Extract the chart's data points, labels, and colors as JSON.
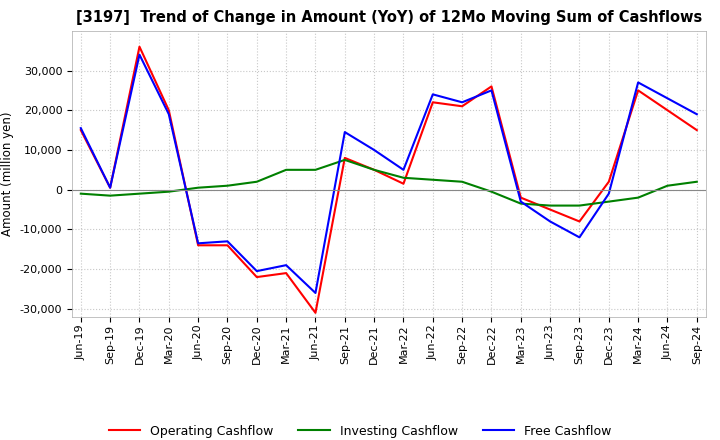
{
  "title": "[3197]  Trend of Change in Amount (YoY) of 12Mo Moving Sum of Cashflows",
  "ylabel": "Amount (million yen)",
  "ylim": [
    -32000,
    40000
  ],
  "yticks": [
    -30000,
    -20000,
    -10000,
    0,
    10000,
    20000,
    30000
  ],
  "background_color": "#ffffff",
  "grid_color": "#c8c8c8",
  "x_labels": [
    "Jun-19",
    "Sep-19",
    "Dec-19",
    "Mar-20",
    "Jun-20",
    "Sep-20",
    "Dec-20",
    "Mar-21",
    "Jun-21",
    "Sep-21",
    "Dec-21",
    "Mar-22",
    "Jun-22",
    "Sep-22",
    "Dec-22",
    "Mar-23",
    "Jun-23",
    "Sep-23",
    "Dec-23",
    "Mar-24",
    "Jun-24",
    "Sep-24"
  ],
  "operating_cashflow": [
    15000,
    500,
    36000,
    20000,
    -14000,
    -14000,
    -22000,
    -21000,
    -31000,
    8000,
    5000,
    1500,
    22000,
    21000,
    26000,
    -2000,
    -5000,
    -8000,
    2000,
    25000,
    20000,
    15000
  ],
  "investing_cashflow": [
    -1000,
    -1500,
    -1000,
    -500,
    500,
    1000,
    2000,
    5000,
    5000,
    7500,
    5000,
    3000,
    2500,
    2000,
    -500,
    -3500,
    -4000,
    -4000,
    -3000,
    -2000,
    1000,
    2000
  ],
  "free_cashflow": [
    15500,
    500,
    34000,
    19000,
    -13500,
    -13000,
    -20500,
    -19000,
    -26000,
    14500,
    10000,
    5000,
    24000,
    22000,
    25000,
    -3000,
    -8000,
    -12000,
    -1000,
    27000,
    23000,
    19000
  ],
  "op_color": "#ff0000",
  "inv_color": "#008000",
  "free_color": "#0000ff",
  "line_width": 1.5,
  "title_fontsize": 10.5,
  "legend_fontsize": 9,
  "tick_fontsize": 8,
  "ylabel_fontsize": 8.5
}
